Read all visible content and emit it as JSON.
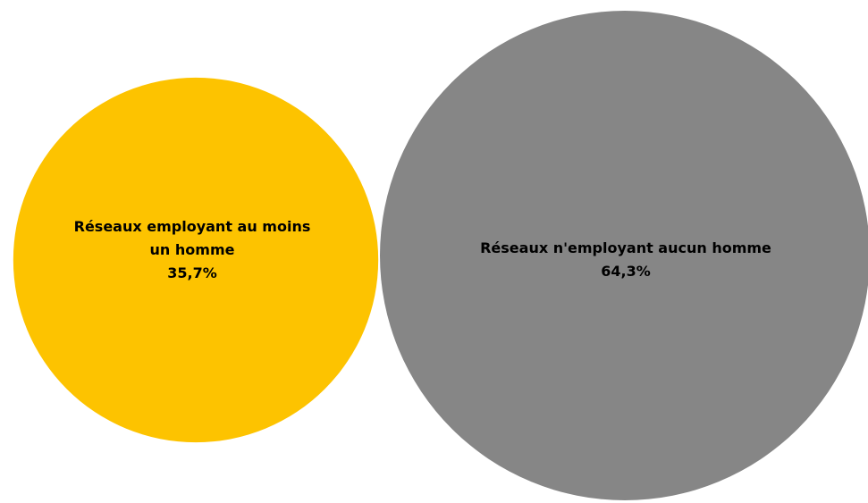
{
  "chart_data": {
    "type": "bubble",
    "series": [
      {
        "label_lines": [
          "Réseaux employant au moins",
          "un homme"
        ],
        "value_label": "35,7%",
        "value": 35.7,
        "color": "#FDC300"
      },
      {
        "label_lines": [
          "Réseaux n'employant aucun homme"
        ],
        "value_label": "64,3%",
        "value": 64.3,
        "color": "#868686"
      }
    ]
  }
}
